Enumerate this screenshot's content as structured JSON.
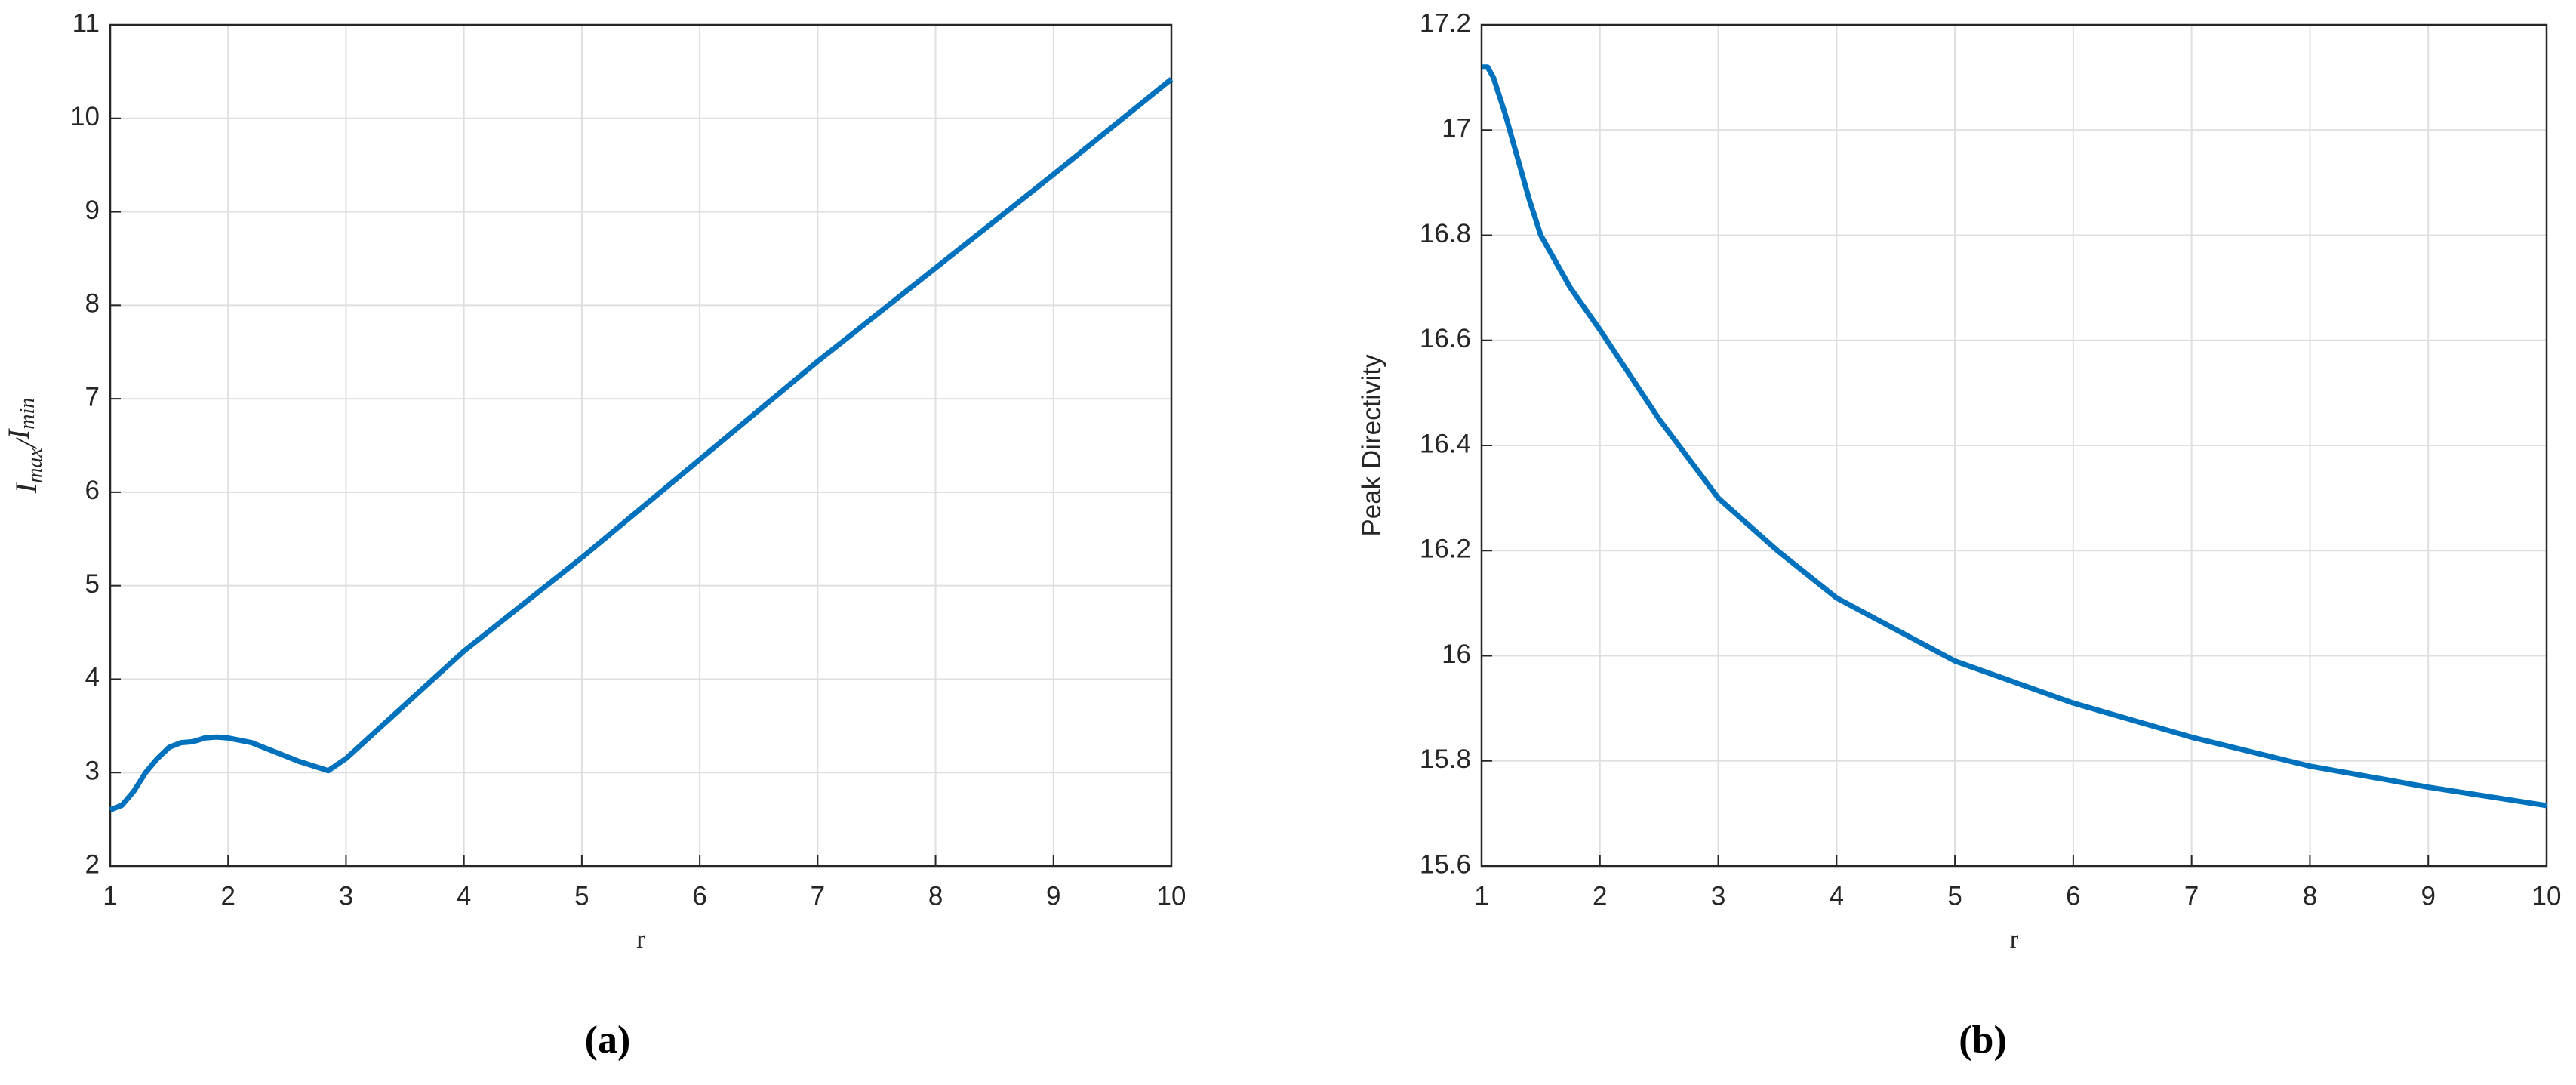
{
  "chart_data": [
    {
      "type": "line",
      "xlabel": "r",
      "ylabel": [
        "I",
        "max",
        "/",
        "I",
        "min"
      ],
      "caption": "(a)",
      "xlim": [
        1,
        10
      ],
      "ylim": [
        2,
        11
      ],
      "xticks": [
        1,
        2,
        3,
        4,
        5,
        6,
        7,
        8,
        9,
        10
      ],
      "yticks": [
        2,
        3,
        4,
        5,
        6,
        7,
        8,
        9,
        10,
        11
      ],
      "grid": true,
      "series": [
        {
          "color": "#0072bd",
          "x": [
            1,
            1.1,
            1.2,
            1.3,
            1.4,
            1.5,
            1.6,
            1.7,
            1.8,
            1.9,
            2.0,
            2.2,
            2.4,
            2.6,
            2.85,
            3,
            4,
            5,
            6,
            7,
            8,
            9,
            10
          ],
          "values": [
            2.6,
            2.65,
            2.8,
            3.0,
            3.15,
            3.27,
            3.32,
            3.33,
            3.37,
            3.38,
            3.37,
            3.32,
            3.22,
            3.12,
            3.02,
            3.15,
            4.3,
            5.3,
            6.35,
            7.4,
            8.4,
            9.4,
            10.42
          ]
        }
      ]
    },
    {
      "type": "line",
      "xlabel": "r",
      "ylabel": [
        "Peak Directivity"
      ],
      "caption": "(b)",
      "xlim": [
        1,
        10
      ],
      "ylim": [
        15.6,
        17.2
      ],
      "xticks": [
        1,
        2,
        3,
        4,
        5,
        6,
        7,
        8,
        9,
        10
      ],
      "yticks": [
        15.6,
        15.8,
        16,
        16.2,
        16.4,
        16.6,
        16.8,
        17,
        17.2
      ],
      "grid": true,
      "series": [
        {
          "color": "#0072bd",
          "x": [
            1,
            1.05,
            1.1,
            1.2,
            1.3,
            1.4,
            1.5,
            1.75,
            2,
            2.5,
            3,
            3.5,
            4,
            4.5,
            5,
            6,
            7,
            8,
            9,
            10
          ],
          "values": [
            17.12,
            17.12,
            17.1,
            17.03,
            16.95,
            16.87,
            16.8,
            16.7,
            16.62,
            16.45,
            16.3,
            16.2,
            16.11,
            16.05,
            15.99,
            15.91,
            15.845,
            15.79,
            15.75,
            15.715
          ]
        }
      ]
    }
  ]
}
